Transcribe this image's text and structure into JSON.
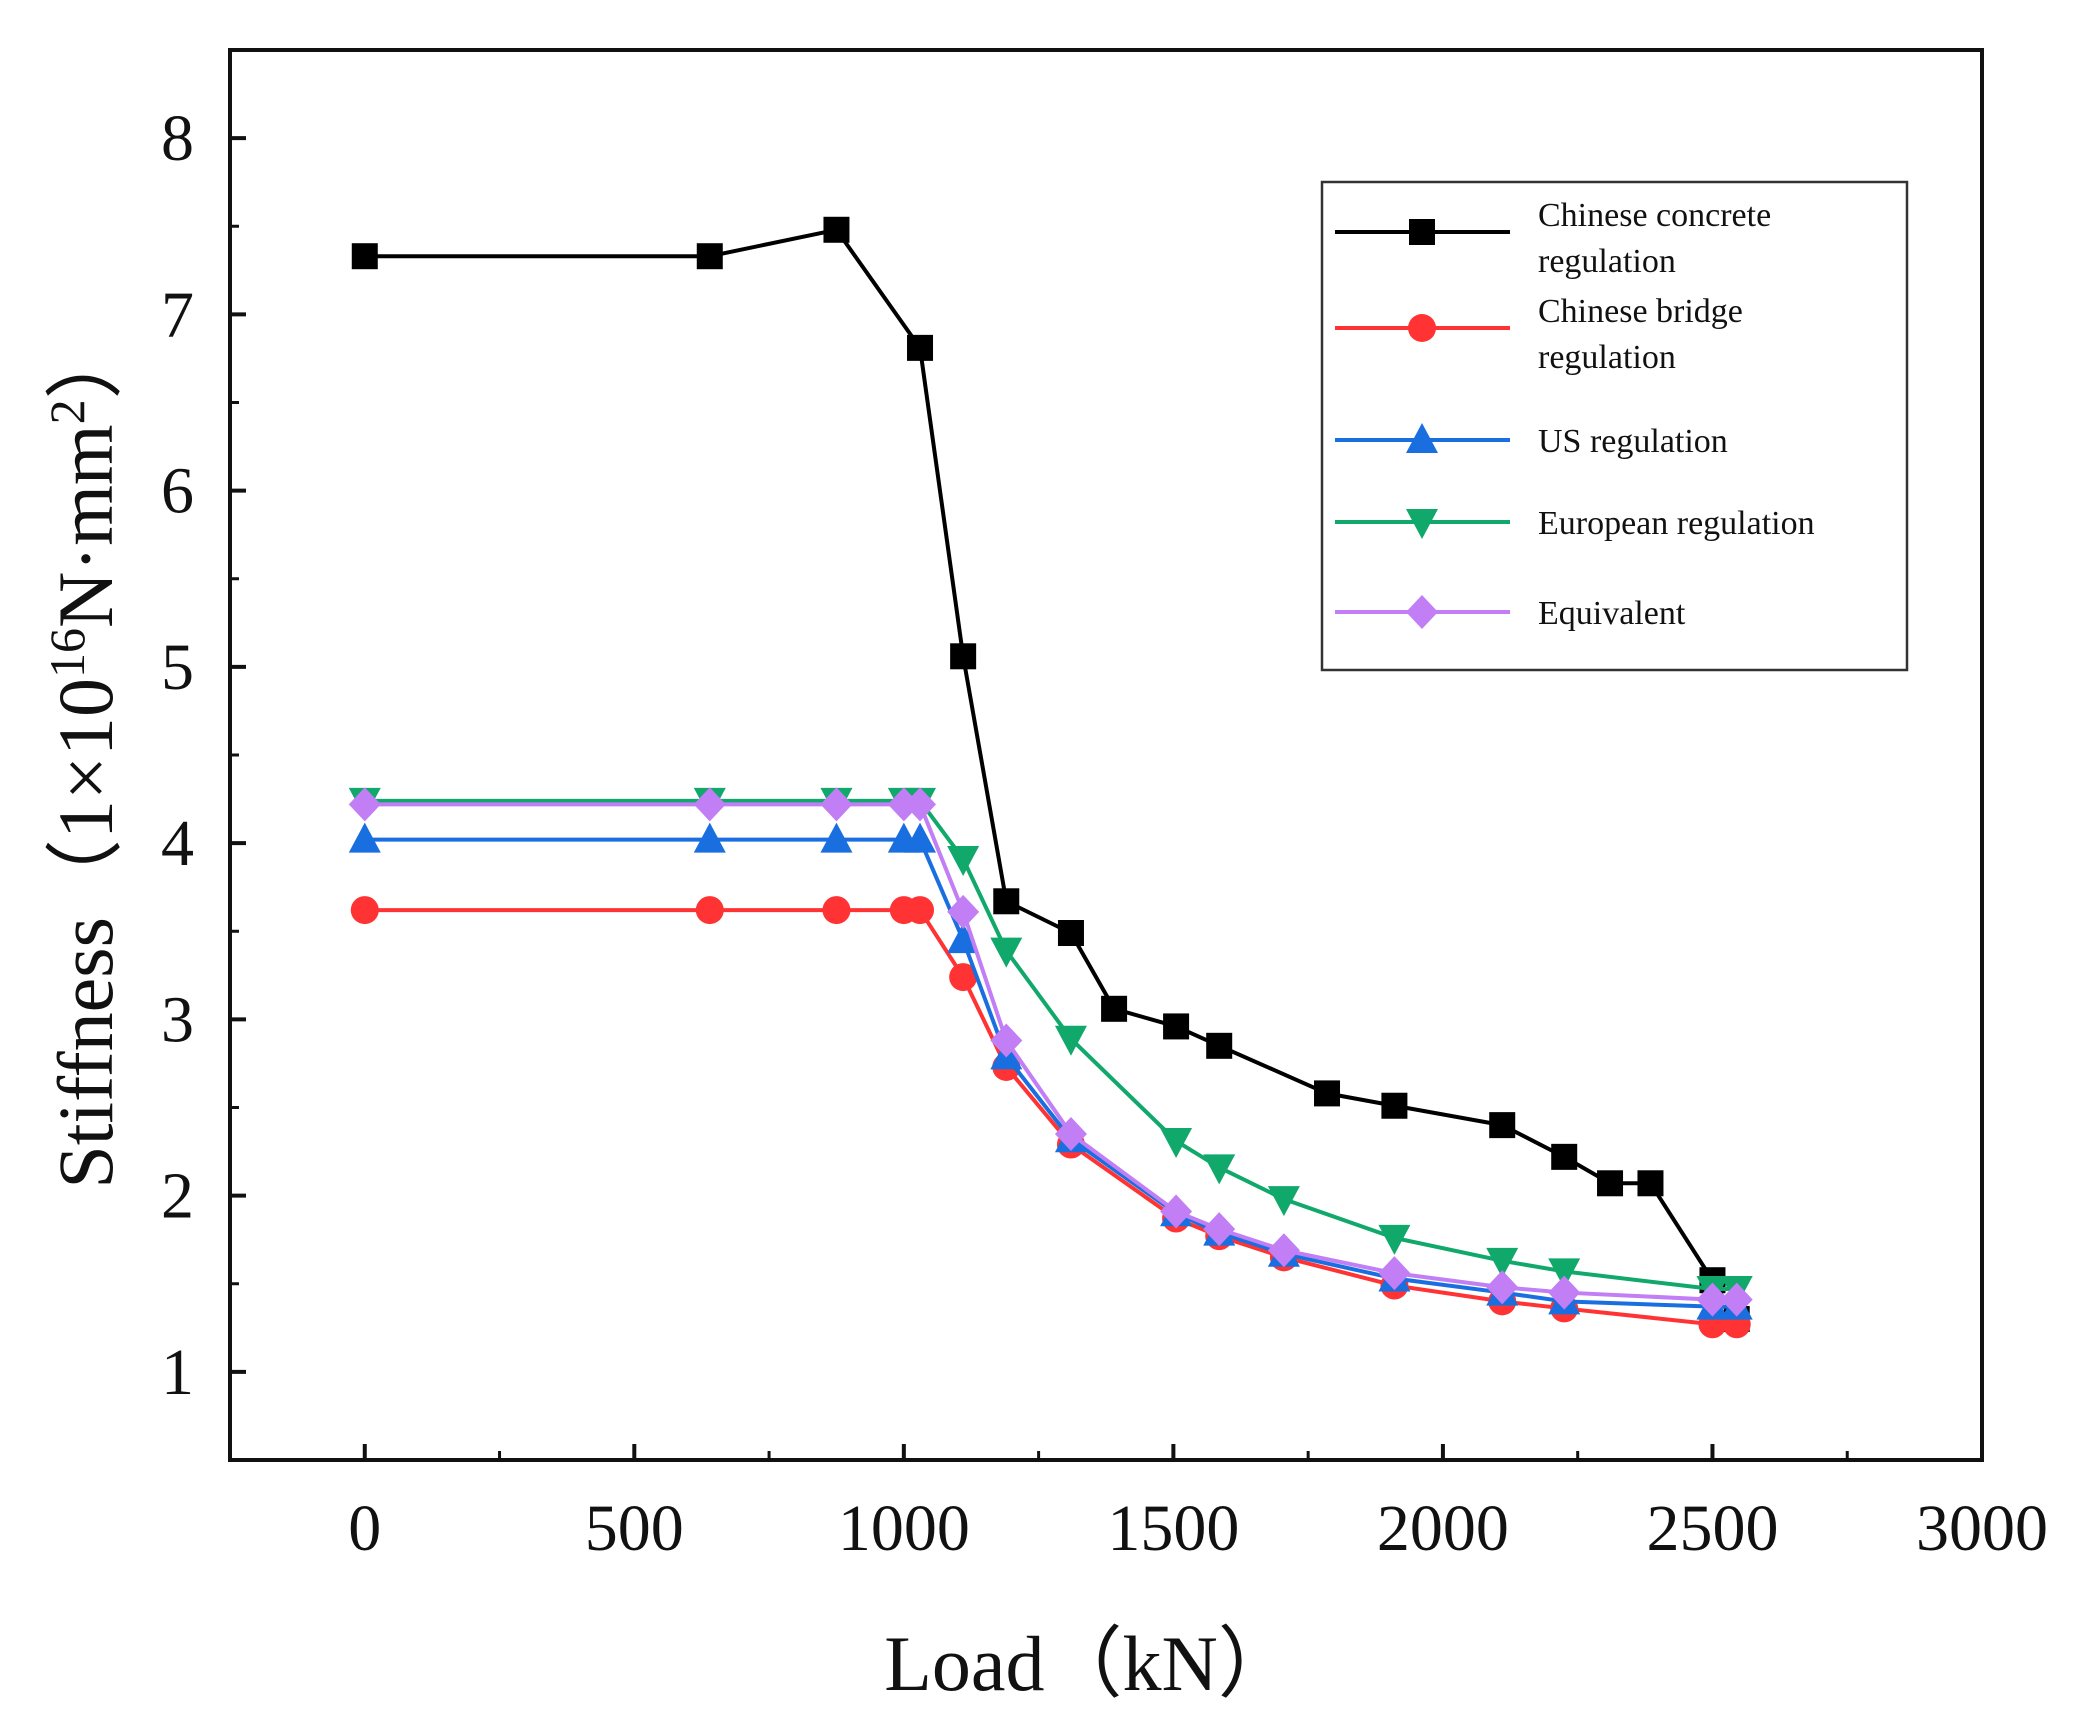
{
  "chart_data": {
    "type": "line",
    "title": "",
    "xlabel": "Load（kN）",
    "ylabel": {
      "prefix": "Stiffness（1×10",
      "exponent": "16",
      "unit": "N·mm",
      "unit_power": "2",
      "suffix": "）"
    },
    "xlim": [
      -250,
      3000
    ],
    "ylim": [
      0.5,
      8.5
    ],
    "xticks": [
      0,
      500,
      1000,
      1500,
      2000,
      2500,
      3000
    ],
    "yticks": [
      1,
      2,
      3,
      4,
      5,
      6,
      7,
      8
    ],
    "grid": false,
    "legend_position": "top-right",
    "series": [
      {
        "name": "Chinese concrete regulation",
        "legend_lines": [
          "Chinese concrete",
          "regulation"
        ],
        "color": "#000000",
        "marker": "square",
        "x": [
          0,
          640,
          875,
          1030,
          1110,
          1190,
          1310,
          1390,
          1505,
          1585,
          1785,
          1910,
          2110,
          2225,
          2310,
          2385,
          2500,
          2545
        ],
        "y": [
          7.33,
          7.33,
          7.48,
          6.81,
          5.06,
          3.67,
          3.49,
          3.06,
          2.96,
          2.85,
          2.58,
          2.51,
          2.4,
          2.22,
          2.07,
          2.07,
          1.52,
          1.3
        ]
      },
      {
        "name": "Chinese bridge regulation",
        "legend_lines": [
          "Chinese bridge",
          "regulation"
        ],
        "color": "#ff3333",
        "marker": "circle",
        "x": [
          0,
          640,
          875,
          1000,
          1030,
          1110,
          1190,
          1310,
          1505,
          1585,
          1705,
          1910,
          2110,
          2225,
          2500,
          2545
        ],
        "y": [
          3.62,
          3.62,
          3.62,
          3.62,
          3.62,
          3.24,
          2.73,
          2.29,
          1.87,
          1.77,
          1.65,
          1.49,
          1.4,
          1.36,
          1.27,
          1.27
        ]
      },
      {
        "name": "US regulation",
        "legend_lines": [
          "US regulation"
        ],
        "color": "#1a6fe0",
        "marker": "triangle-up",
        "x": [
          0,
          640,
          875,
          1000,
          1030,
          1110,
          1190,
          1310,
          1505,
          1585,
          1705,
          1910,
          2110,
          2225,
          2500,
          2545
        ],
        "y": [
          4.02,
          4.02,
          4.02,
          4.02,
          4.02,
          3.45,
          2.79,
          2.32,
          1.9,
          1.79,
          1.67,
          1.53,
          1.45,
          1.4,
          1.37,
          1.37
        ]
      },
      {
        "name": "European regulation",
        "legend_lines": [
          "European regulation"
        ],
        "color": "#11a86b",
        "marker": "triangle-down",
        "x": [
          0,
          640,
          875,
          1000,
          1030,
          1110,
          1190,
          1310,
          1505,
          1585,
          1705,
          1910,
          2110,
          2225,
          2500,
          2545
        ],
        "y": [
          4.24,
          4.24,
          4.24,
          4.24,
          4.24,
          3.91,
          3.39,
          2.89,
          2.31,
          2.16,
          1.98,
          1.76,
          1.63,
          1.57,
          1.47,
          1.47
        ]
      },
      {
        "name": "Equivalent",
        "legend_lines": [
          "Equivalent"
        ],
        "color": "#c17ef5",
        "marker": "diamond",
        "x": [
          0,
          640,
          875,
          1000,
          1030,
          1110,
          1190,
          1310,
          1505,
          1585,
          1705,
          1910,
          2110,
          2225,
          2500,
          2545
        ],
        "y": [
          4.22,
          4.22,
          4.22,
          4.22,
          4.22,
          3.61,
          2.88,
          2.35,
          1.91,
          1.81,
          1.69,
          1.56,
          1.48,
          1.45,
          1.41,
          1.41
        ]
      }
    ]
  }
}
